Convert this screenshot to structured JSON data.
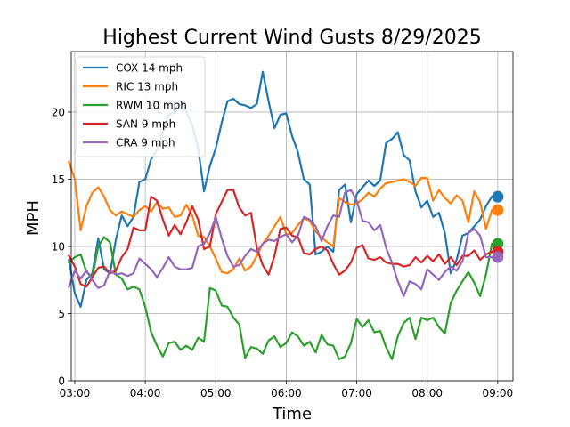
{
  "chart_data": {
    "type": "line",
    "title": "Highest Current Wind Gusts 8/29/2025",
    "xlabel": "Time",
    "ylabel": "MPH",
    "xlim": [
      "02:57",
      "09:13"
    ],
    "ylim": [
      0,
      24.5
    ],
    "xticks": [
      "03:00",
      "04:00",
      "05:00",
      "06:00",
      "07:00",
      "08:00",
      "09:00"
    ],
    "yticks": [
      0,
      5,
      10,
      15,
      20
    ],
    "grid": true,
    "legend_position": "upper left",
    "series": [
      {
        "name": "COX 14 mph",
        "color": "#1f77b4",
        "x": [
          "02:55",
          "03:00",
          "03:05",
          "03:10",
          "03:15",
          "03:20",
          "03:25",
          "03:30",
          "03:35",
          "03:40",
          "03:45",
          "03:50",
          "03:55",
          "04:00",
          "04:05",
          "04:10",
          "04:15",
          "04:20",
          "04:25",
          "04:30",
          "04:35",
          "04:40",
          "04:45",
          "04:50",
          "04:55",
          "05:00",
          "05:05",
          "05:10",
          "05:15",
          "05:20",
          "05:25",
          "05:30",
          "05:35",
          "05:40",
          "05:45",
          "05:50",
          "05:55",
          "06:00",
          "06:05",
          "06:10",
          "06:15",
          "06:20",
          "06:25",
          "06:30",
          "06:35",
          "06:40",
          "06:45",
          "06:50",
          "06:55",
          "07:00",
          "07:05",
          "07:10",
          "07:15",
          "07:20",
          "07:25",
          "07:30",
          "07:35",
          "07:40",
          "07:45",
          "07:50",
          "07:55",
          "08:00",
          "08:05",
          "08:10",
          "08:15",
          "08:20",
          "08:25",
          "08:30",
          "08:35",
          "08:40",
          "08:45",
          "08:50",
          "08:55"
        ],
        "values": [
          9.0,
          6.5,
          5.5,
          7.5,
          8.0,
          10.6,
          8.3,
          8.0,
          10.5,
          12.3,
          11.5,
          12.2,
          14.8,
          15.0,
          16.5,
          17.2,
          18.5,
          19.8,
          20.0,
          20.8,
          20.0,
          19.0,
          17.3,
          14.1,
          16.0,
          17.3,
          19.2,
          20.8,
          21.0,
          20.6,
          20.5,
          20.3,
          20.6,
          23.0,
          20.8,
          18.8,
          19.8,
          19.9,
          18.2,
          17.0,
          15.0,
          14.6,
          9.4,
          9.6,
          10.0,
          9.6,
          14.2,
          14.6,
          11.8,
          13.9,
          14.4,
          14.9,
          14.5,
          14.9,
          17.7,
          18.0,
          18.5,
          16.8,
          16.4,
          14.1,
          12.9,
          13.4,
          12.2,
          12.5,
          11.0,
          8.0,
          9.0,
          10.8,
          11.0,
          11.5,
          12.0,
          13.0,
          13.7
        ]
      },
      {
        "name": "RIC 13 mph",
        "color": "#ff7f0e",
        "x": [
          "02:55",
          "03:00",
          "03:05",
          "03:10",
          "03:15",
          "03:20",
          "03:25",
          "03:30",
          "03:35",
          "03:40",
          "03:45",
          "03:50",
          "03:55",
          "04:00",
          "04:05",
          "04:10",
          "04:15",
          "04:20",
          "04:25",
          "04:30",
          "04:35",
          "04:40",
          "04:45",
          "04:50",
          "04:55",
          "05:00",
          "05:05",
          "05:10",
          "05:15",
          "05:20",
          "05:25",
          "05:30",
          "05:35",
          "05:40",
          "05:45",
          "05:50",
          "05:55",
          "06:00",
          "06:05",
          "06:10",
          "06:15",
          "06:20",
          "06:25",
          "06:30",
          "06:35",
          "06:40",
          "06:45",
          "06:50",
          "06:55",
          "07:00",
          "07:05",
          "07:10",
          "07:15",
          "07:20",
          "07:25",
          "07:30",
          "07:35",
          "07:40",
          "07:45",
          "07:50",
          "07:55",
          "08:00",
          "08:05",
          "08:10",
          "08:15",
          "08:20",
          "08:25",
          "08:30",
          "08:35",
          "08:40",
          "08:45",
          "08:50",
          "08:55"
        ],
        "values": [
          16.3,
          15.0,
          11.2,
          13.0,
          14.0,
          14.4,
          13.7,
          12.7,
          12.3,
          12.6,
          12.4,
          12.2,
          12.7,
          13.0,
          12.6,
          13.3,
          12.8,
          12.9,
          12.2,
          12.3,
          13.1,
          12.3,
          10.8,
          10.7,
          10.0,
          9.1,
          8.1,
          8.0,
          8.3,
          9.1,
          8.2,
          8.5,
          9.3,
          10.2,
          10.8,
          11.5,
          12.2,
          10.9,
          11.0,
          11.6,
          12.1,
          11.9,
          11.1,
          10.7,
          10.3,
          10.0,
          13.6,
          13.3,
          13.1,
          13.2,
          13.5,
          14.0,
          13.7,
          14.3,
          14.7,
          14.8,
          14.9,
          15.0,
          14.8,
          14.5,
          15.1,
          15.1,
          13.4,
          14.2,
          13.6,
          13.2,
          13.8,
          13.4,
          11.8,
          14.1,
          13.3,
          11.3,
          12.7
        ]
      },
      {
        "name": "RWM 10 mph",
        "color": "#2ca02c",
        "x": [
          "02:55",
          "03:00",
          "03:05",
          "03:10",
          "03:15",
          "03:20",
          "03:25",
          "03:30",
          "03:35",
          "03:40",
          "03:45",
          "03:50",
          "03:55",
          "04:00",
          "04:05",
          "04:10",
          "04:15",
          "04:20",
          "04:25",
          "04:30",
          "04:35",
          "04:40",
          "04:45",
          "04:50",
          "04:55",
          "05:00",
          "05:05",
          "05:10",
          "05:15",
          "05:20",
          "05:25",
          "05:30",
          "05:35",
          "05:40",
          "05:45",
          "05:50",
          "05:55",
          "06:00",
          "06:05",
          "06:10",
          "06:15",
          "06:20",
          "06:25",
          "06:30",
          "06:35",
          "06:40",
          "06:45",
          "06:50",
          "06:55",
          "07:00",
          "07:05",
          "07:10",
          "07:15",
          "07:20",
          "07:25",
          "07:30",
          "07:35",
          "07:40",
          "07:45",
          "07:50",
          "07:55",
          "08:00",
          "08:05",
          "08:10",
          "08:15",
          "08:20",
          "08:25",
          "08:30",
          "08:35",
          "08:40",
          "08:45",
          "08:50",
          "08:55"
        ],
        "values": [
          8.8,
          9.2,
          9.4,
          8.1,
          7.7,
          10.0,
          10.7,
          10.3,
          7.9,
          7.6,
          6.8,
          7.0,
          6.8,
          5.5,
          3.6,
          2.6,
          1.8,
          2.8,
          2.9,
          2.3,
          2.6,
          2.3,
          3.2,
          2.9,
          6.9,
          6.7,
          5.6,
          5.5,
          4.7,
          4.2,
          1.7,
          2.5,
          2.4,
          2.0,
          3.0,
          3.3,
          2.5,
          2.8,
          3.6,
          3.3,
          2.6,
          2.9,
          2.1,
          3.4,
          2.7,
          2.6,
          1.6,
          1.8,
          2.8,
          4.6,
          4.0,
          4.5,
          3.6,
          3.7,
          2.5,
          1.6,
          3.3,
          4.3,
          4.7,
          3.1,
          4.7,
          4.5,
          4.7,
          4.0,
          3.5,
          5.8,
          6.7,
          7.4,
          8.1,
          7.3,
          6.3,
          7.9,
          10.2
        ]
      },
      {
        "name": "SAN 9 mph",
        "color": "#d62728",
        "x": [
          "02:55",
          "03:00",
          "03:05",
          "03:10",
          "03:15",
          "03:20",
          "03:25",
          "03:30",
          "03:35",
          "03:40",
          "03:45",
          "03:50",
          "03:55",
          "04:00",
          "04:05",
          "04:10",
          "04:15",
          "04:20",
          "04:25",
          "04:30",
          "04:35",
          "04:40",
          "04:45",
          "04:50",
          "04:55",
          "05:00",
          "05:05",
          "05:10",
          "05:15",
          "05:20",
          "05:25",
          "05:30",
          "05:35",
          "05:40",
          "05:45",
          "05:50",
          "05:55",
          "06:00",
          "06:05",
          "06:10",
          "06:15",
          "06:20",
          "06:25",
          "06:30",
          "06:35",
          "06:40",
          "06:45",
          "06:50",
          "06:55",
          "07:00",
          "07:05",
          "07:10",
          "07:15",
          "07:20",
          "07:25",
          "07:30",
          "07:35",
          "07:40",
          "07:45",
          "07:50",
          "07:55",
          "08:00",
          "08:05",
          "08:10",
          "08:15",
          "08:20",
          "08:25",
          "08:30",
          "08:35",
          "08:40",
          "08:45",
          "08:50",
          "08:55"
        ],
        "values": [
          9.3,
          8.5,
          7.2,
          7.0,
          7.7,
          8.4,
          8.5,
          8.0,
          8.2,
          9.2,
          9.8,
          11.4,
          11.2,
          11.2,
          13.7,
          13.4,
          12.0,
          10.8,
          11.6,
          10.9,
          11.8,
          13.0,
          12.0,
          9.8,
          10.0,
          12.4,
          13.3,
          14.2,
          14.2,
          12.9,
          12.3,
          12.5,
          9.9,
          8.6,
          7.9,
          9.3,
          11.3,
          11.4,
          10.8,
          10.7,
          9.5,
          9.4,
          9.8,
          10.0,
          9.7,
          8.7,
          7.9,
          8.2,
          8.8,
          9.9,
          10.1,
          9.1,
          9.0,
          9.2,
          8.8,
          8.7,
          8.7,
          8.5,
          8.6,
          9.2,
          8.8,
          9.3,
          8.9,
          9.4,
          8.7,
          9.2,
          8.6,
          9.3,
          9.3,
          9.7,
          9.0,
          9.4,
          9.6
        ]
      },
      {
        "name": "CRA 9 mph",
        "color": "#9467bd",
        "x": [
          "02:55",
          "03:00",
          "03:05",
          "03:10",
          "03:15",
          "03:20",
          "03:25",
          "03:30",
          "03:35",
          "03:40",
          "03:45",
          "03:50",
          "03:55",
          "04:00",
          "04:05",
          "04:10",
          "04:15",
          "04:20",
          "04:25",
          "04:30",
          "04:35",
          "04:40",
          "04:45",
          "04:50",
          "04:55",
          "05:00",
          "05:05",
          "05:10",
          "05:15",
          "05:20",
          "05:25",
          "05:30",
          "05:35",
          "05:40",
          "05:45",
          "05:50",
          "05:55",
          "06:00",
          "06:05",
          "06:10",
          "06:15",
          "06:20",
          "06:25",
          "06:30",
          "06:35",
          "06:40",
          "06:45",
          "06:50",
          "06:55",
          "07:00",
          "07:05",
          "07:10",
          "07:15",
          "07:20",
          "07:25",
          "07:30",
          "07:35",
          "07:40",
          "07:45",
          "07:50",
          "07:55",
          "08:00",
          "08:05",
          "08:10",
          "08:15",
          "08:20",
          "08:25",
          "08:30",
          "08:35",
          "08:40",
          "08:45",
          "08:50",
          "08:55"
        ],
        "values": [
          7.0,
          8.2,
          7.6,
          8.2,
          7.5,
          6.9,
          7.1,
          8.2,
          7.9,
          8.0,
          7.8,
          8.0,
          9.1,
          8.7,
          8.3,
          7.7,
          8.4,
          9.2,
          8.5,
          8.3,
          8.3,
          8.4,
          10.0,
          10.2,
          11.0,
          12.2,
          10.6,
          9.3,
          8.5,
          8.6,
          9.3,
          9.8,
          9.6,
          10.2,
          10.5,
          10.4,
          10.7,
          10.9,
          10.3,
          10.8,
          12.2,
          12.0,
          11.5,
          10.4,
          11.5,
          12.3,
          12.2,
          14.0,
          14.2,
          13.4,
          11.9,
          11.8,
          11.2,
          11.6,
          9.9,
          8.8,
          7.4,
          6.3,
          7.4,
          7.2,
          6.8,
          8.3,
          7.9,
          7.5,
          8.1,
          8.5,
          8.2,
          8.9,
          11.0,
          11.3,
          10.8,
          9.2,
          9.2
        ]
      }
    ],
    "endpoints": [
      {
        "series": "COX 14 mph",
        "x": "09:00",
        "value": 13.7
      },
      {
        "series": "RIC 13 mph",
        "x": "09:00",
        "value": 12.7
      },
      {
        "series": "RWM 10 mph",
        "x": "09:00",
        "value": 10.2
      },
      {
        "series": "SAN 9 mph",
        "x": "09:00",
        "value": 9.6
      },
      {
        "series": "CRA 9 mph",
        "x": "09:00",
        "value": 9.2
      }
    ]
  }
}
